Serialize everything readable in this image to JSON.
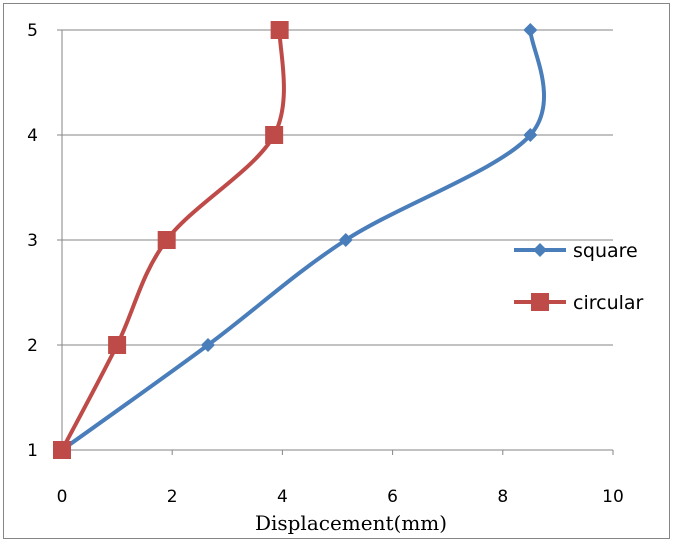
{
  "chart_data": {
    "type": "line",
    "xlabel": "Displacement(mm)",
    "ylabel": "",
    "xlim": [
      0,
      10
    ],
    "ylim": [
      1,
      5
    ],
    "x_ticks": [
      0,
      2,
      4,
      6,
      8,
      10
    ],
    "y_ticks": [
      1,
      2,
      3,
      4,
      5
    ],
    "grid": "horizontal",
    "legend_position": "right",
    "series": [
      {
        "name": "square",
        "color": "#4a7ebb",
        "marker": "diamond",
        "points": [
          [
            0,
            1
          ],
          [
            2.65,
            2
          ],
          [
            5.15,
            3
          ],
          [
            8.5,
            4
          ],
          [
            8.5,
            5
          ]
        ]
      },
      {
        "name": "circular",
        "color": "#be4b48",
        "marker": "square",
        "points": [
          [
            0,
            1
          ],
          [
            1.0,
            2
          ],
          [
            1.9,
            3
          ],
          [
            3.85,
            4
          ],
          [
            3.95,
            5
          ]
        ]
      }
    ]
  }
}
